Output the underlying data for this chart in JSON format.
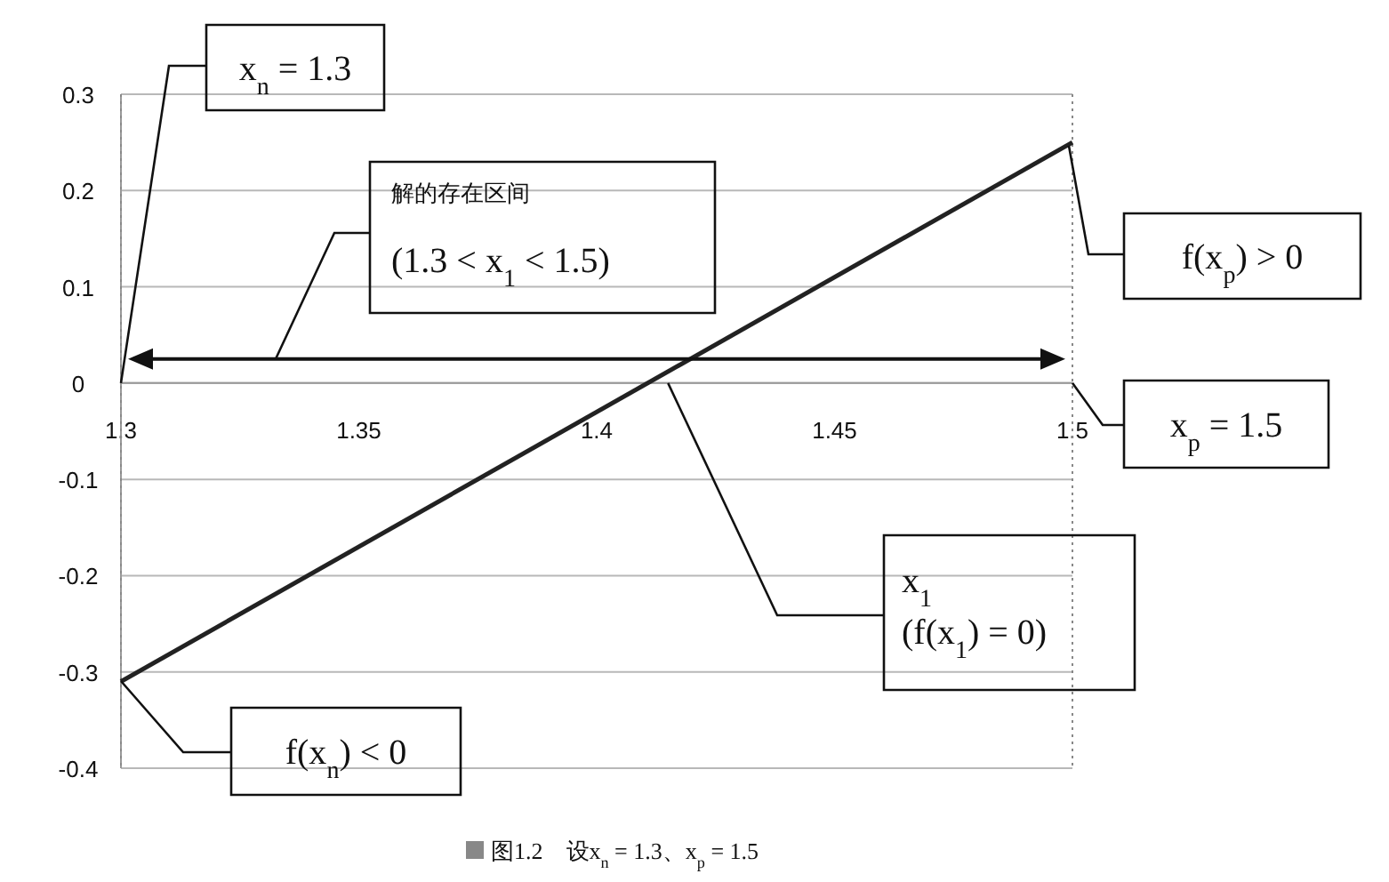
{
  "chart_data": {
    "type": "line",
    "x": [
      1.3,
      1.5
    ],
    "series": [
      {
        "color": "#222222",
        "values": [
          -0.31,
          0.25
        ]
      }
    ],
    "xlim": [
      1.3,
      1.5
    ],
    "xticks": [
      1.3,
      1.35,
      1.4,
      1.45,
      1.5
    ],
    "ylim": [
      -0.4,
      0.3
    ],
    "yticks": [
      -0.4,
      -0.3,
      -0.2,
      -0.1,
      0,
      0.1,
      0.2,
      0.3
    ],
    "grid": "y",
    "marker": "none",
    "line_style": "solid",
    "ref_lines": [
      {
        "axis": "x",
        "value": 1.3,
        "line_style": "dotted",
        "color": "#888888"
      },
      {
        "axis": "x",
        "value": 1.5,
        "line_style": "dotted",
        "color": "#888888"
      }
    ],
    "annotations": [
      {
        "text": "x$_{n}$ = 1.3",
        "x": 1.3,
        "y": 0
      },
      "解的存在区间\n(1.3 < x$_{1}$ < 1.5)",
      "f(x$_{p}$) > 0",
      {
        "text": "x$_{p}$ = 1.5",
        "x": 1.5,
        "y": 0
      },
      {
        "text": "x$_{1}$\n(f(x$_{1}$) = 0)",
        "x": 1.415,
        "y": 0
      },
      "f(x$_{n}$) < 0",
      "图1.2　设x$_{n}$ = 1.3、x$_{p}$ = 1.5"
    ]
  }
}
